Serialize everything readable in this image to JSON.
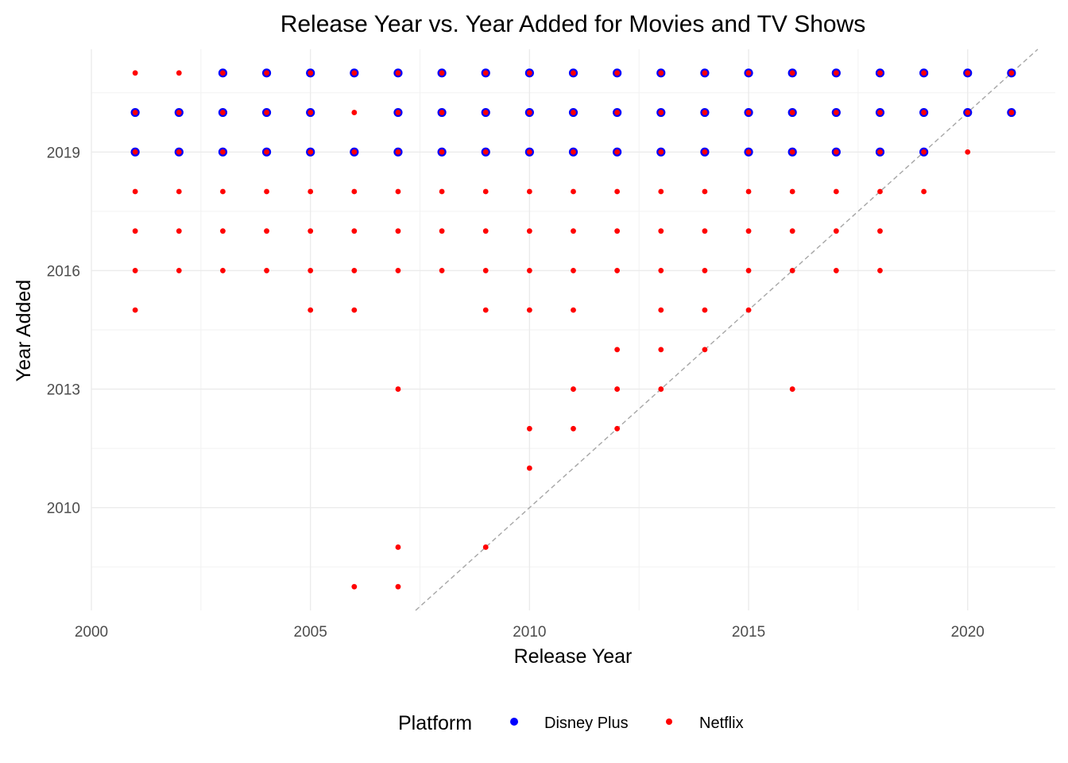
{
  "chart_data": {
    "type": "scatter",
    "title": "Release Year vs. Year Added for Movies and TV Shows",
    "xlabel": "Release Year",
    "ylabel": "Year Added",
    "xlim": [
      2000,
      2022
    ],
    "ylim": [
      2007.4,
      2021.6
    ],
    "x_ticks": [
      2000,
      2005,
      2010,
      2015,
      2020
    ],
    "y_ticks": [
      2010,
      2013,
      2016,
      2019
    ],
    "grid": true,
    "legend_position": "bottom",
    "legend_title": "Platform",
    "reference_line": {
      "style": "dashed",
      "color": "#a6a6a6",
      "points": [
        [
          2007,
          2007
        ],
        [
          2022,
          2022
        ]
      ]
    },
    "series": [
      {
        "name": "Disney Plus",
        "color": "#0000ff",
        "points": [
          [
            2003,
            2021
          ],
          [
            2004,
            2021
          ],
          [
            2005,
            2021
          ],
          [
            2006,
            2021
          ],
          [
            2007,
            2021
          ],
          [
            2008,
            2021
          ],
          [
            2009,
            2021
          ],
          [
            2010,
            2021
          ],
          [
            2011,
            2021
          ],
          [
            2012,
            2021
          ],
          [
            2013,
            2021
          ],
          [
            2014,
            2021
          ],
          [
            2015,
            2021
          ],
          [
            2016,
            2021
          ],
          [
            2017,
            2021
          ],
          [
            2018,
            2021
          ],
          [
            2019,
            2021
          ],
          [
            2020,
            2021
          ],
          [
            2021,
            2021
          ],
          [
            2001,
            2020
          ],
          [
            2002,
            2020
          ],
          [
            2003,
            2020
          ],
          [
            2004,
            2020
          ],
          [
            2005,
            2020
          ],
          [
            2007,
            2020
          ],
          [
            2008,
            2020
          ],
          [
            2009,
            2020
          ],
          [
            2010,
            2020
          ],
          [
            2011,
            2020
          ],
          [
            2012,
            2020
          ],
          [
            2013,
            2020
          ],
          [
            2014,
            2020
          ],
          [
            2015,
            2020
          ],
          [
            2016,
            2020
          ],
          [
            2017,
            2020
          ],
          [
            2018,
            2020
          ],
          [
            2019,
            2020
          ],
          [
            2020,
            2020
          ],
          [
            2021,
            2020
          ],
          [
            2001,
            2019
          ],
          [
            2002,
            2019
          ],
          [
            2003,
            2019
          ],
          [
            2004,
            2019
          ],
          [
            2005,
            2019
          ],
          [
            2006,
            2019
          ],
          [
            2007,
            2019
          ],
          [
            2008,
            2019
          ],
          [
            2009,
            2019
          ],
          [
            2010,
            2019
          ],
          [
            2011,
            2019
          ],
          [
            2012,
            2019
          ],
          [
            2013,
            2019
          ],
          [
            2014,
            2019
          ],
          [
            2015,
            2019
          ],
          [
            2016,
            2019
          ],
          [
            2017,
            2019
          ],
          [
            2018,
            2019
          ],
          [
            2019,
            2019
          ]
        ]
      },
      {
        "name": "Netflix",
        "color": "#ff0000",
        "points": [
          [
            2001,
            2021
          ],
          [
            2002,
            2021
          ],
          [
            2003,
            2021
          ],
          [
            2004,
            2021
          ],
          [
            2005,
            2021
          ],
          [
            2006,
            2021
          ],
          [
            2007,
            2021
          ],
          [
            2008,
            2021
          ],
          [
            2009,
            2021
          ],
          [
            2010,
            2021
          ],
          [
            2011,
            2021
          ],
          [
            2012,
            2021
          ],
          [
            2013,
            2021
          ],
          [
            2014,
            2021
          ],
          [
            2015,
            2021
          ],
          [
            2016,
            2021
          ],
          [
            2017,
            2021
          ],
          [
            2018,
            2021
          ],
          [
            2019,
            2021
          ],
          [
            2020,
            2021
          ],
          [
            2021,
            2021
          ],
          [
            2001,
            2020
          ],
          [
            2002,
            2020
          ],
          [
            2003,
            2020
          ],
          [
            2004,
            2020
          ],
          [
            2005,
            2020
          ],
          [
            2006,
            2020
          ],
          [
            2007,
            2020
          ],
          [
            2008,
            2020
          ],
          [
            2009,
            2020
          ],
          [
            2010,
            2020
          ],
          [
            2011,
            2020
          ],
          [
            2012,
            2020
          ],
          [
            2013,
            2020
          ],
          [
            2014,
            2020
          ],
          [
            2015,
            2020
          ],
          [
            2016,
            2020
          ],
          [
            2017,
            2020
          ],
          [
            2018,
            2020
          ],
          [
            2019,
            2020
          ],
          [
            2020,
            2020
          ],
          [
            2021,
            2020
          ],
          [
            2001,
            2019
          ],
          [
            2002,
            2019
          ],
          [
            2003,
            2019
          ],
          [
            2004,
            2019
          ],
          [
            2005,
            2019
          ],
          [
            2006,
            2019
          ],
          [
            2007,
            2019
          ],
          [
            2008,
            2019
          ],
          [
            2009,
            2019
          ],
          [
            2010,
            2019
          ],
          [
            2011,
            2019
          ],
          [
            2012,
            2019
          ],
          [
            2013,
            2019
          ],
          [
            2014,
            2019
          ],
          [
            2015,
            2019
          ],
          [
            2016,
            2019
          ],
          [
            2017,
            2019
          ],
          [
            2018,
            2019
          ],
          [
            2019,
            2019
          ],
          [
            2020,
            2019
          ],
          [
            2001,
            2018
          ],
          [
            2002,
            2018
          ],
          [
            2003,
            2018
          ],
          [
            2004,
            2018
          ],
          [
            2005,
            2018
          ],
          [
            2006,
            2018
          ],
          [
            2007,
            2018
          ],
          [
            2008,
            2018
          ],
          [
            2009,
            2018
          ],
          [
            2010,
            2018
          ],
          [
            2011,
            2018
          ],
          [
            2012,
            2018
          ],
          [
            2013,
            2018
          ],
          [
            2014,
            2018
          ],
          [
            2015,
            2018
          ],
          [
            2016,
            2018
          ],
          [
            2017,
            2018
          ],
          [
            2018,
            2018
          ],
          [
            2019,
            2018
          ],
          [
            2001,
            2017
          ],
          [
            2002,
            2017
          ],
          [
            2003,
            2017
          ],
          [
            2004,
            2017
          ],
          [
            2005,
            2017
          ],
          [
            2006,
            2017
          ],
          [
            2007,
            2017
          ],
          [
            2008,
            2017
          ],
          [
            2009,
            2017
          ],
          [
            2010,
            2017
          ],
          [
            2011,
            2017
          ],
          [
            2012,
            2017
          ],
          [
            2013,
            2017
          ],
          [
            2014,
            2017
          ],
          [
            2015,
            2017
          ],
          [
            2016,
            2017
          ],
          [
            2017,
            2017
          ],
          [
            2018,
            2017
          ],
          [
            2001,
            2016
          ],
          [
            2002,
            2016
          ],
          [
            2003,
            2016
          ],
          [
            2004,
            2016
          ],
          [
            2005,
            2016
          ],
          [
            2006,
            2016
          ],
          [
            2007,
            2016
          ],
          [
            2008,
            2016
          ],
          [
            2009,
            2016
          ],
          [
            2010,
            2016
          ],
          [
            2011,
            2016
          ],
          [
            2012,
            2016
          ],
          [
            2013,
            2016
          ],
          [
            2014,
            2016
          ],
          [
            2015,
            2016
          ],
          [
            2016,
            2016
          ],
          [
            2017,
            2016
          ],
          [
            2018,
            2016
          ],
          [
            2001,
            2015
          ],
          [
            2005,
            2015
          ],
          [
            2006,
            2015
          ],
          [
            2009,
            2015
          ],
          [
            2010,
            2015
          ],
          [
            2011,
            2015
          ],
          [
            2013,
            2015
          ],
          [
            2014,
            2015
          ],
          [
            2015,
            2015
          ],
          [
            2012,
            2014
          ],
          [
            2013,
            2014
          ],
          [
            2014,
            2014
          ],
          [
            2007,
            2013
          ],
          [
            2011,
            2013
          ],
          [
            2012,
            2013
          ],
          [
            2013,
            2013
          ],
          [
            2016,
            2013
          ],
          [
            2010,
            2012
          ],
          [
            2011,
            2012
          ],
          [
            2012,
            2012
          ],
          [
            2010,
            2011
          ],
          [
            2007,
            2009
          ],
          [
            2009,
            2009
          ],
          [
            2006,
            2008
          ],
          [
            2007,
            2008
          ]
        ]
      }
    ]
  }
}
